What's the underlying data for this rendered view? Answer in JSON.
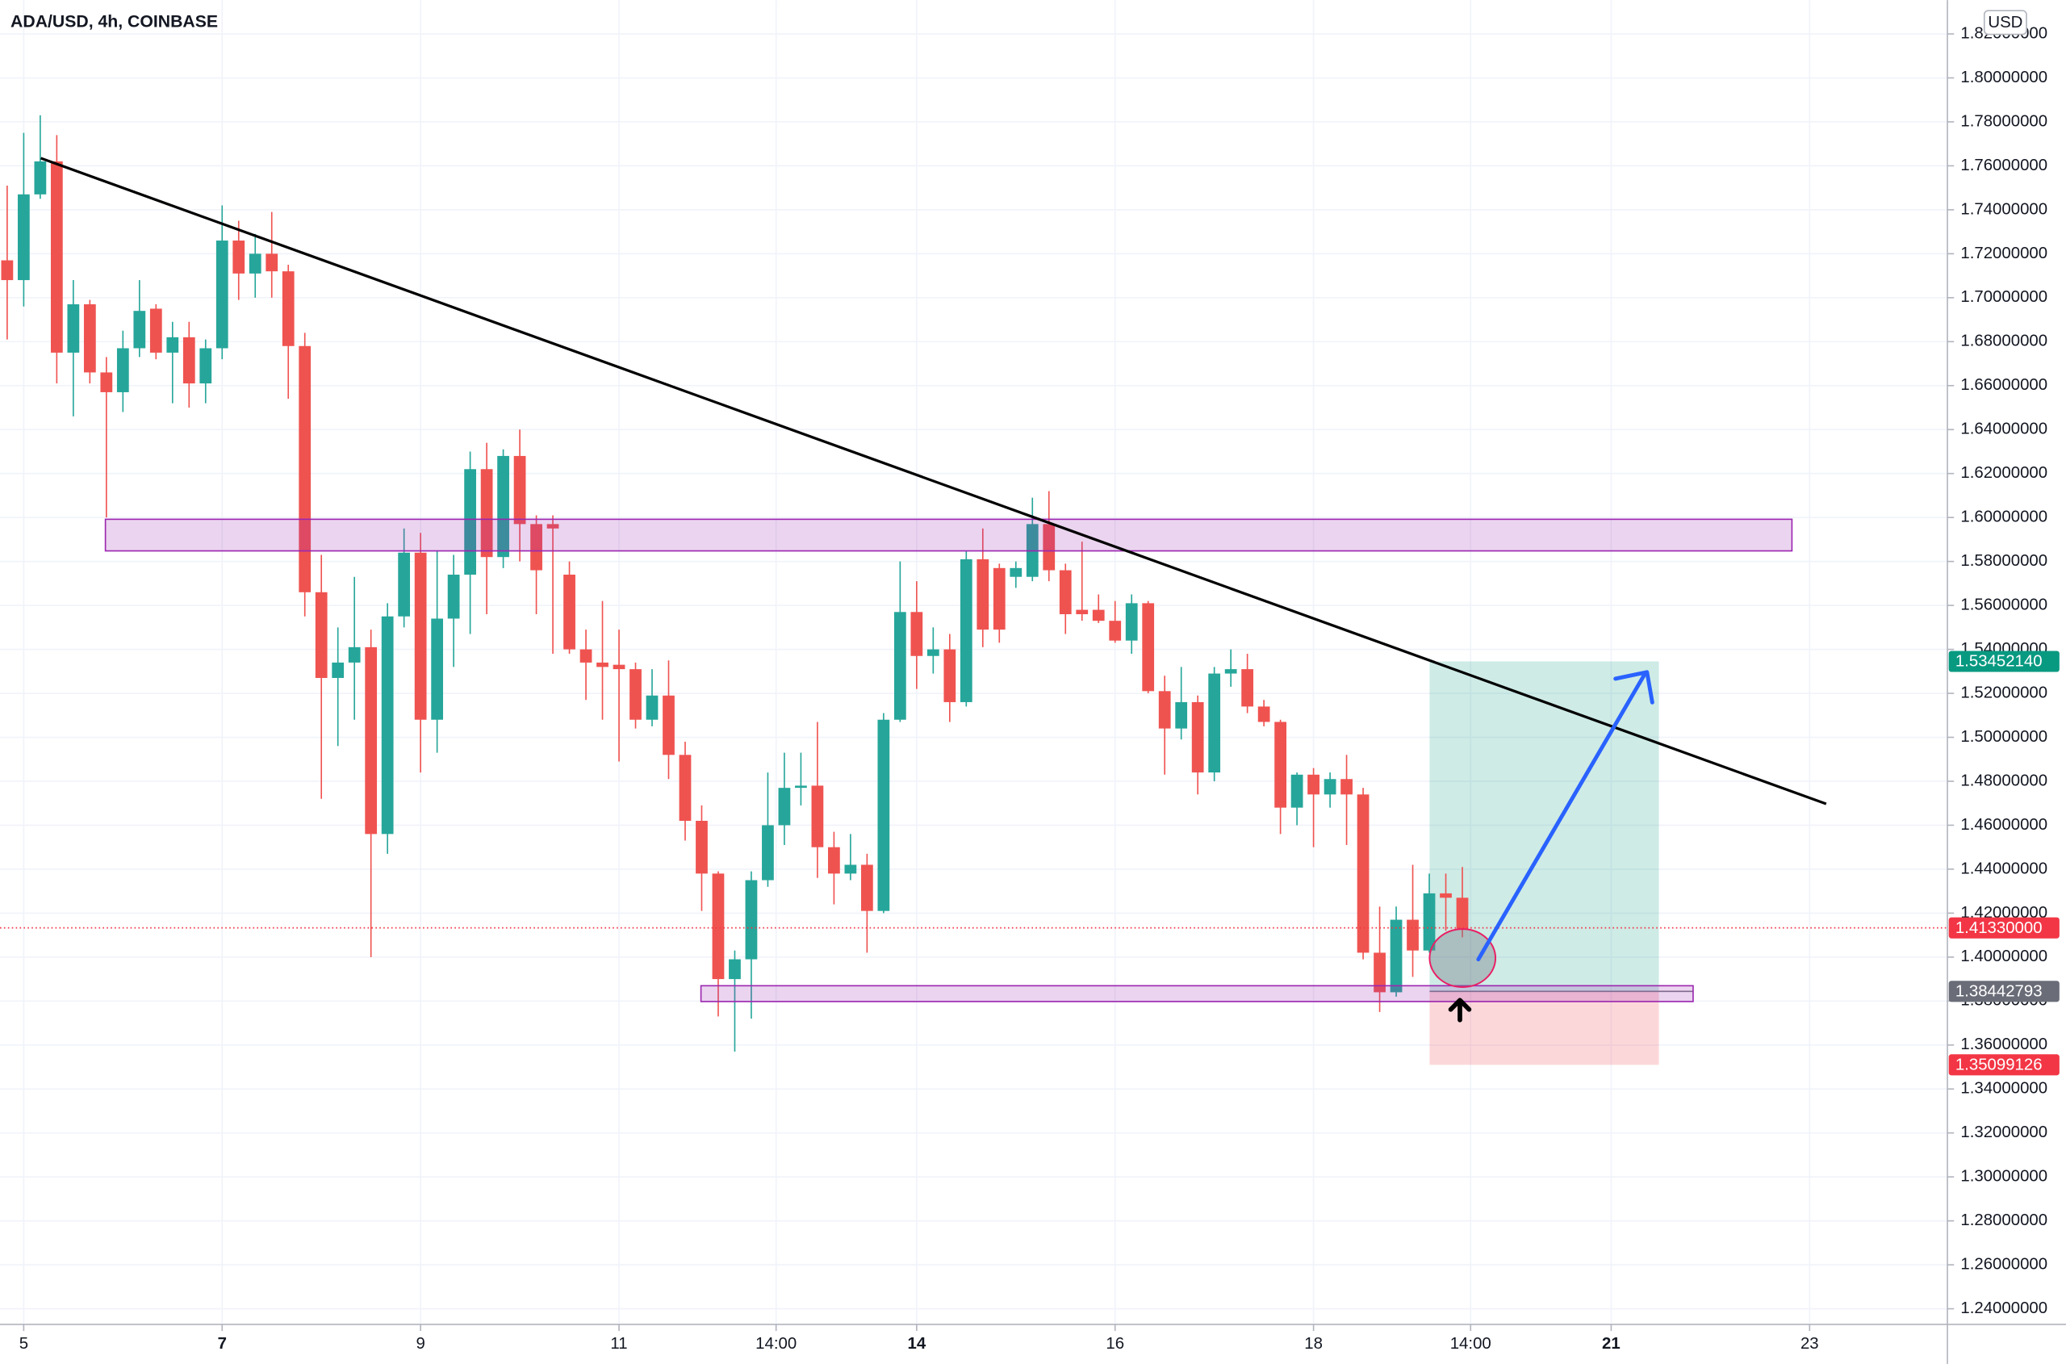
{
  "chart_data": {
    "type": "candlestick",
    "title": "ADA/USD, 4h, COINBASE",
    "currency": "USD",
    "up_color": "#26a69a",
    "down_color": "#ef5350",
    "grid": true,
    "x": [
      4.8333,
      5,
      5.1667,
      5.3333,
      5.5,
      5.6667,
      5.8333,
      6,
      6.1667,
      6.3333,
      6.5,
      6.6667,
      6.8333,
      7,
      7.1667,
      7.3333,
      7.5,
      7.6667,
      7.8333,
      8,
      8.1667,
      8.3333,
      8.5,
      8.6667,
      8.8333,
      9,
      9.1667,
      9.3333,
      9.5,
      9.6667,
      9.8333,
      10,
      10.1667,
      10.3333,
      10.5,
      10.6667,
      10.8333,
      11,
      11.1667,
      11.3333,
      11.5,
      11.6667,
      11.8333,
      12,
      12.1667,
      12.3333,
      12.5,
      12.6667,
      12.8333,
      13,
      13.1667,
      13.3333,
      13.5,
      13.6667,
      13.8333,
      14,
      14.1667,
      14.3333,
      14.5,
      14.6667,
      14.8333,
      15,
      15.1667,
      15.3333,
      15.5,
      15.6667,
      15.8333,
      16,
      16.1667,
      16.3333,
      16.5,
      16.6667,
      16.8333,
      17,
      17.1667,
      17.3333,
      17.5,
      17.6667,
      17.8333,
      18,
      18.1667,
      18.3333,
      18.5,
      18.6667,
      18.8333,
      19,
      19.1667,
      19.3333,
      19.5
    ],
    "open": [
      1.717,
      1.708,
      1.747,
      1.762,
      1.675,
      1.697,
      1.666,
      1.657,
      1.677,
      1.695,
      1.675,
      1.682,
      1.661,
      1.677,
      1.726,
      1.711,
      1.72,
      1.712,
      1.678,
      1.566,
      1.527,
      1.534,
      1.541,
      1.456,
      1.555,
      1.584,
      1.508,
      1.554,
      1.574,
      1.622,
      1.582,
      1.628,
      1.597,
      1.597,
      1.574,
      1.54,
      1.534,
      1.533,
      1.531,
      1.508,
      1.519,
      1.492,
      1.462,
      1.438,
      1.39,
      1.399,
      1.435,
      1.46,
      1.477,
      1.478,
      1.45,
      1.438,
      1.442,
      1.421,
      1.508,
      1.557,
      1.537,
      1.54,
      1.516,
      1.581,
      1.577,
      1.573,
      1.573,
      1.597,
      1.576,
      1.558,
      1.558,
      1.553,
      1.544,
      1.561,
      1.521,
      1.504,
      1.516,
      1.484,
      1.529,
      1.531,
      1.514,
      1.507,
      1.468,
      1.483,
      1.474,
      1.481,
      1.474,
      1.402,
      1.384,
      1.417,
      1.403,
      1.429,
      1.427
    ],
    "high": [
      1.751,
      1.775,
      1.783,
      1.774,
      1.708,
      1.699,
      1.673,
      1.685,
      1.708,
      1.697,
      1.689,
      1.689,
      1.681,
      1.742,
      1.735,
      1.729,
      1.739,
      1.715,
      1.684,
      1.583,
      1.55,
      1.573,
      1.549,
      1.561,
      1.595,
      1.593,
      1.585,
      1.583,
      1.63,
      1.634,
      1.631,
      1.64,
      1.601,
      1.601,
      1.58,
      1.549,
      1.562,
      1.549,
      1.534,
      1.531,
      1.535,
      1.498,
      1.469,
      1.439,
      1.403,
      1.439,
      1.484,
      1.493,
      1.493,
      1.507,
      1.457,
      1.456,
      1.447,
      1.511,
      1.58,
      1.571,
      1.55,
      1.547,
      1.585,
      1.595,
      1.579,
      1.58,
      1.609,
      1.612,
      1.579,
      1.589,
      1.565,
      1.562,
      1.565,
      1.562,
      1.528,
      1.532,
      1.519,
      1.532,
      1.54,
      1.538,
      1.517,
      1.508,
      1.484,
      1.486,
      1.484,
      1.492,
      1.477,
      1.423,
      1.423,
      1.442,
      1.438,
      1.438,
      1.441
    ],
    "low": [
      1.681,
      1.696,
      1.745,
      1.661,
      1.646,
      1.661,
      1.6,
      1.648,
      1.673,
      1.672,
      1.652,
      1.65,
      1.652,
      1.672,
      1.699,
      1.7,
      1.7,
      1.654,
      1.555,
      1.472,
      1.496,
      1.508,
      1.4,
      1.447,
      1.55,
      1.484,
      1.493,
      1.532,
      1.547,
      1.556,
      1.577,
      1.58,
      1.556,
      1.538,
      1.538,
      1.517,
      1.508,
      1.489,
      1.504,
      1.505,
      1.481,
      1.453,
      1.421,
      1.373,
      1.357,
      1.372,
      1.432,
      1.451,
      1.469,
      1.436,
      1.424,
      1.435,
      1.402,
      1.42,
      1.507,
      1.522,
      1.529,
      1.507,
      1.514,
      1.541,
      1.543,
      1.568,
      1.571,
      1.571,
      1.547,
      1.553,
      1.552,
      1.543,
      1.538,
      1.52,
      1.483,
      1.499,
      1.474,
      1.48,
      1.523,
      1.511,
      1.505,
      1.456,
      1.46,
      1.45,
      1.468,
      1.451,
      1.399,
      1.375,
      1.382,
      1.391,
      1.402,
      1.412,
      1.409
    ],
    "close": [
      1.708,
      1.747,
      1.762,
      1.675,
      1.697,
      1.666,
      1.657,
      1.677,
      1.694,
      1.675,
      1.682,
      1.661,
      1.677,
      1.726,
      1.711,
      1.72,
      1.712,
      1.678,
      1.566,
      1.527,
      1.534,
      1.541,
      1.456,
      1.555,
      1.584,
      1.508,
      1.554,
      1.574,
      1.622,
      1.582,
      1.628,
      1.597,
      1.576,
      1.595,
      1.54,
      1.534,
      1.532,
      1.531,
      1.508,
      1.519,
      1.492,
      1.462,
      1.438,
      1.39,
      1.399,
      1.435,
      1.46,
      1.477,
      1.478,
      1.45,
      1.438,
      1.442,
      1.421,
      1.508,
      1.557,
      1.537,
      1.54,
      1.516,
      1.581,
      1.549,
      1.549,
      1.577,
      1.597,
      1.576,
      1.556,
      1.556,
      1.553,
      1.544,
      1.561,
      1.521,
      1.504,
      1.516,
      1.484,
      1.529,
      1.531,
      1.514,
      1.507,
      1.468,
      1.483,
      1.474,
      1.481,
      1.474,
      1.402,
      1.384,
      1.417,
      1.403,
      1.429,
      1.427,
      1.413
    ],
    "xlim": [
      4.761,
      24.389
    ],
    "xticks": [
      5,
      7,
      9,
      11,
      {
        "value": 12.5833,
        "label": "14:00"
      },
      14,
      16,
      18,
      {
        "value": 19.5833,
        "label": "14:00"
      },
      21,
      23
    ],
    "ylim": [
      1.2329,
      1.8354
    ],
    "yticks": [
      {
        "value": 1.24,
        "label": "1.24000000"
      },
      {
        "value": 1.26,
        "label": "1.26000000"
      },
      {
        "value": 1.28,
        "label": "1.28000000"
      },
      {
        "value": 1.3,
        "label": "1.30000000"
      },
      {
        "value": 1.32,
        "label": "1.32000000"
      },
      {
        "value": 1.34,
        "label": "1.34000000"
      },
      {
        "value": 1.36,
        "label": "1.36000000"
      },
      {
        "value": 1.38,
        "label": "1.38000000"
      },
      {
        "value": 1.4,
        "label": "1.40000000"
      },
      {
        "value": 1.42,
        "label": "1.42000000"
      },
      {
        "value": 1.44,
        "label": "1.44000000"
      },
      {
        "value": 1.46,
        "label": "1.46000000"
      },
      {
        "value": 1.48,
        "label": "1.48000000"
      },
      {
        "value": 1.5,
        "label": "1.50000000"
      },
      {
        "value": 1.52,
        "label": "1.52000000"
      },
      {
        "value": 1.54,
        "label": "1.54000000"
      },
      {
        "value": 1.56,
        "label": "1.56000000"
      },
      {
        "value": 1.58,
        "label": "1.58000000"
      },
      {
        "value": 1.6,
        "label": "1.60000000"
      },
      {
        "value": 1.62,
        "label": "1.62000000"
      },
      {
        "value": 1.64,
        "label": "1.64000000"
      },
      {
        "value": 1.66,
        "label": "1.66000000"
      },
      {
        "value": 1.68,
        "label": "1.68000000"
      },
      {
        "value": 1.7,
        "label": "1.70000000"
      },
      {
        "value": 1.72,
        "label": "1.72000000"
      },
      {
        "value": 1.74,
        "label": "1.74000000"
      },
      {
        "value": 1.76,
        "label": "1.76000000"
      },
      {
        "value": 1.78,
        "label": "1.78000000"
      },
      {
        "value": 1.8,
        "label": "1.80000000"
      },
      {
        "value": 1.82,
        "label": "1.82000000"
      }
    ],
    "price_labels": [
      {
        "value": 1.5345214,
        "label": "1.53452140",
        "color": "#089981"
      },
      {
        "value": 1.4133,
        "label": "1.41330000",
        "color": "#f23645"
      },
      {
        "value": 1.38442793,
        "label": "1.38442793",
        "color": "#6a6d78"
      },
      {
        "value": 1.35099126,
        "label": "1.35099126",
        "color": "#f23645"
      }
    ]
  }
}
